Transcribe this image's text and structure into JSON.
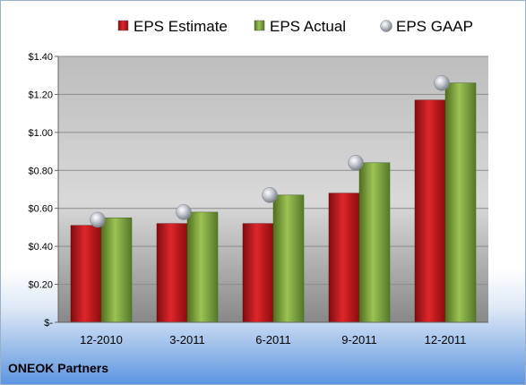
{
  "company": "ONEOK Partners",
  "chart_data": {
    "type": "bar",
    "title": "",
    "xlabel": "",
    "ylabel": "",
    "categories": [
      "12-2010",
      "3-2011",
      "6-2011",
      "9-2011",
      "12-2011"
    ],
    "series": [
      {
        "name": "EPS Estimate",
        "kind": "bar",
        "color": "#c8151b",
        "values": [
          0.51,
          0.52,
          0.52,
          0.68,
          1.17
        ]
      },
      {
        "name": "EPS Actual",
        "kind": "bar",
        "color": "#7aa23a",
        "values": [
          0.55,
          0.58,
          0.67,
          0.84,
          1.26
        ]
      },
      {
        "name": "EPS GAAP",
        "kind": "marker",
        "color": "#b8bcc4",
        "values": [
          0.54,
          0.58,
          0.67,
          0.84,
          1.26
        ]
      }
    ],
    "ylim": [
      0,
      1.4
    ],
    "yticks": [
      0,
      0.2,
      0.4,
      0.6,
      0.8,
      1.0,
      1.2,
      1.4
    ],
    "ytick_labels": [
      "$-",
      "$0.20",
      "$0.40",
      "$0.60",
      "$0.80",
      "$1.00",
      "$1.20",
      "$1.40"
    ],
    "grid": true,
    "legend_position": "top"
  }
}
